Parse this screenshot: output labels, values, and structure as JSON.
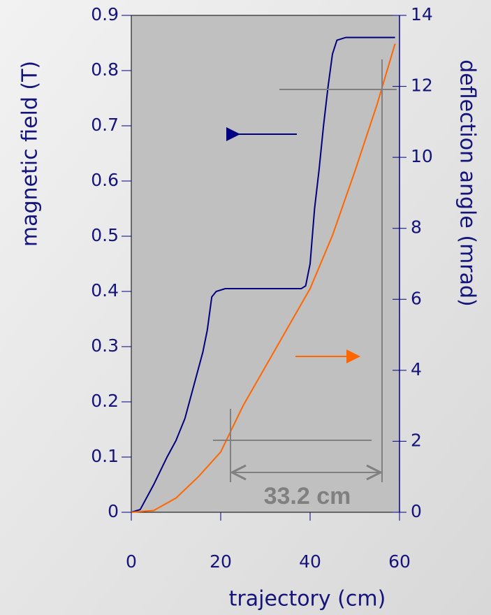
{
  "chart_data": {
    "type": "line",
    "xlabel": "trajectory (cm)",
    "ylabel": "magnetic field (T)",
    "y2label": "deflection angle (mrad)",
    "xlim": [
      0,
      60
    ],
    "ylim": [
      0,
      0.9
    ],
    "y2lim": [
      0,
      14
    ],
    "xticks": [
      0,
      20,
      40,
      60
    ],
    "yticks": [
      0,
      0.1,
      0.2,
      0.3,
      0.4,
      0.5,
      0.6,
      0.7,
      0.8,
      0.9
    ],
    "y2ticks": [
      0,
      2,
      4,
      6,
      8,
      10,
      12,
      14
    ],
    "series": [
      {
        "color": "#000080",
        "x": [
          0,
          2,
          5,
          8,
          10,
          12,
          13,
          15,
          16,
          17,
          18,
          19,
          21,
          30,
          38,
          39,
          40,
          41,
          42,
          43,
          44,
          45,
          46,
          48,
          59
        ],
        "values": [
          0,
          0.005,
          0.05,
          0.1,
          0.13,
          0.17,
          0.2,
          0.26,
          0.29,
          0.33,
          0.39,
          0.4,
          0.405,
          0.405,
          0.405,
          0.41,
          0.45,
          0.55,
          0.62,
          0.7,
          0.77,
          0.83,
          0.855,
          0.86,
          0.86
        ]
      },
      {
        "color": "#ff6600",
        "axis": "y2",
        "x": [
          0,
          5,
          10,
          15,
          20,
          25,
          30,
          35,
          40,
          45,
          50,
          55,
          59
        ],
        "values": [
          0,
          0.05,
          0.4,
          1.0,
          1.7,
          3.0,
          4.1,
          5.2,
          6.3,
          7.8,
          9.6,
          11.5,
          13.2
        ]
      }
    ],
    "annotations": [
      {
        "text": "33.2 cm"
      }
    ]
  }
}
